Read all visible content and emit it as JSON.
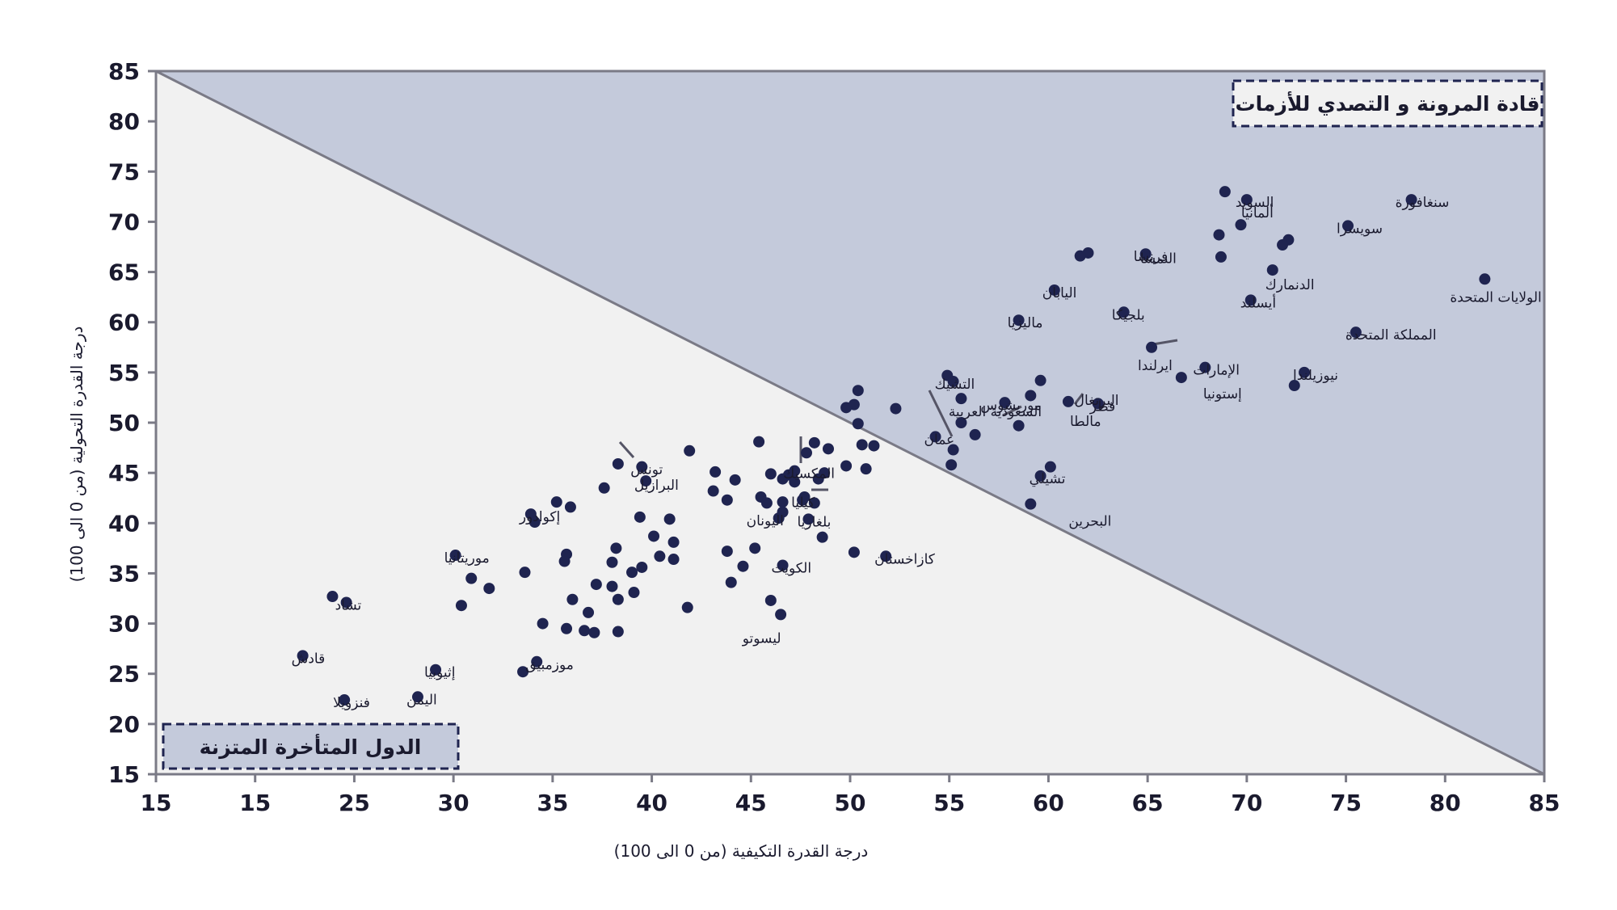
{
  "chart_data": {
    "type": "scatter",
    "xlabel": "درجة القدرة التكيفية (من 0 الى 100)",
    "ylabel": "درجة القدرة التحولية (من 0 الى 100)",
    "xlim": [
      15,
      85
    ],
    "ylim": [
      15,
      85
    ],
    "x_tick_labels": [
      "15",
      "15",
      "25",
      "30",
      "35",
      "40",
      "45",
      "50",
      "55",
      "60",
      "65",
      "70",
      "75",
      "80",
      "85"
    ],
    "y_ticks": [
      15,
      20,
      25,
      30,
      35,
      40,
      45,
      50,
      55,
      60,
      65,
      70,
      75,
      80,
      85
    ],
    "grid": false,
    "diagonal": {
      "from": [
        15,
        85
      ],
      "to": [
        85,
        15
      ]
    },
    "zones": {
      "upper": {
        "label": "قادة المرونة و التصدي للأزمات",
        "color": "#c4cadb"
      },
      "lower": {
        "label": "الدول المتأخرة المتزنة",
        "color": "#f1f1f1"
      }
    },
    "colors": {
      "point": "#1f2450",
      "axis": "#7a7a86",
      "border": "#1f2450"
    },
    "points": [
      {
        "x": 78.3,
        "y": 72.2,
        "label": "سنغافورة"
      },
      {
        "x": 82.0,
        "y": 64.3,
        "label": "الولايات المتحدة"
      },
      {
        "x": 68.9,
        "y": 73.0,
        "label": "ألمانيا"
      },
      {
        "x": 70.0,
        "y": 72.2,
        "label": "السويد"
      },
      {
        "x": 75.1,
        "y": 69.6,
        "label": "سويسرا"
      },
      {
        "x": 69.7,
        "y": 69.7,
        "label": ""
      },
      {
        "x": 68.6,
        "y": 68.7,
        "label": ""
      },
      {
        "x": 72.1,
        "y": 68.2,
        "label": ""
      },
      {
        "x": 71.8,
        "y": 67.7,
        "label": ""
      },
      {
        "x": 68.7,
        "y": 66.5,
        "label": ""
      },
      {
        "x": 71.3,
        "y": 65.2,
        "label": "الدنمارك"
      },
      {
        "x": 70.2,
        "y": 62.2,
        "label": "أيسلند"
      },
      {
        "x": 75.5,
        "y": 59.0,
        "label": "المملكة المتحدة"
      },
      {
        "x": 72.9,
        "y": 55.0,
        "label": "نيوزيلندا"
      },
      {
        "x": 72.4,
        "y": 53.7,
        "label": ""
      },
      {
        "x": 67.9,
        "y": 55.5,
        "label": "الإمارات"
      },
      {
        "x": 66.7,
        "y": 54.5,
        "label": "إستونيا"
      },
      {
        "x": 65.2,
        "y": 57.5,
        "label": "ايرلندا"
      },
      {
        "x": 64.9,
        "y": 66.8,
        "label": "فرنسا"
      },
      {
        "x": 63.8,
        "y": 61.0,
        "label": "بلجيكا"
      },
      {
        "x": 62.0,
        "y": 66.9,
        "label": ""
      },
      {
        "x": 61.6,
        "y": 66.6,
        "label": "النمسا"
      },
      {
        "x": 60.3,
        "y": 63.2,
        "label": "اليابان"
      },
      {
        "x": 58.5,
        "y": 60.2,
        "label": "ماليزيا"
      },
      {
        "x": 59.6,
        "y": 54.2,
        "label": "البرتغال"
      },
      {
        "x": 59.1,
        "y": 52.7,
        "label": ""
      },
      {
        "x": 61.0,
        "y": 52.1,
        "label": "مالطا"
      },
      {
        "x": 62.5,
        "y": 51.9,
        "label": "قطر"
      },
      {
        "x": 57.8,
        "y": 52.0,
        "label": "موريشوس"
      },
      {
        "x": 58.5,
        "y": 49.7,
        "label": ""
      },
      {
        "x": 54.9,
        "y": 54.7,
        "label": ""
      },
      {
        "x": 55.2,
        "y": 54.1,
        "label": "التشيك"
      },
      {
        "x": 55.6,
        "y": 52.4,
        "label": ""
      },
      {
        "x": 55.6,
        "y": 50.0,
        "label": ""
      },
      {
        "x": 56.3,
        "y": 48.8,
        "label": ""
      },
      {
        "x": 54.3,
        "y": 48.6,
        "label": "عمان"
      },
      {
        "x": 55.2,
        "y": 47.3,
        "label": ""
      },
      {
        "x": 55.1,
        "y": 45.8,
        "label": ""
      },
      {
        "x": 60.1,
        "y": 45.6,
        "label": ""
      },
      {
        "x": 59.6,
        "y": 44.7,
        "label": "تشيلي"
      },
      {
        "x": 59.1,
        "y": 41.9,
        "label": "البحرين"
      },
      {
        "x": 50.4,
        "y": 53.2,
        "label": "السعودية العربية"
      },
      {
        "x": 50.2,
        "y": 51.8,
        "label": ""
      },
      {
        "x": 49.8,
        "y": 51.5,
        "label": ""
      },
      {
        "x": 52.3,
        "y": 51.4,
        "label": ""
      },
      {
        "x": 50.4,
        "y": 49.9,
        "label": ""
      },
      {
        "x": 50.6,
        "y": 47.8,
        "label": ""
      },
      {
        "x": 51.2,
        "y": 47.7,
        "label": ""
      },
      {
        "x": 49.8,
        "y": 45.7,
        "label": ""
      },
      {
        "x": 50.8,
        "y": 45.4,
        "label": ""
      },
      {
        "x": 48.9,
        "y": 47.4,
        "label": ""
      },
      {
        "x": 48.2,
        "y": 48.0,
        "label": ""
      },
      {
        "x": 47.8,
        "y": 47.0,
        "label": ""
      },
      {
        "x": 47.2,
        "y": 45.2,
        "label": "المكسيك"
      },
      {
        "x": 46.9,
        "y": 44.8,
        "label": ""
      },
      {
        "x": 46.6,
        "y": 44.4,
        "label": ""
      },
      {
        "x": 47.2,
        "y": 44.1,
        "label": ""
      },
      {
        "x": 46.0,
        "y": 44.9,
        "label": ""
      },
      {
        "x": 48.7,
        "y": 45.0,
        "label": ""
      },
      {
        "x": 48.4,
        "y": 44.4,
        "label": ""
      },
      {
        "x": 47.7,
        "y": 42.6,
        "label": ""
      },
      {
        "x": 47.6,
        "y": 42.3,
        "label": "كيليا"
      },
      {
        "x": 48.2,
        "y": 42.0,
        "label": ""
      },
      {
        "x": 45.4,
        "y": 48.1,
        "label": ""
      },
      {
        "x": 45.5,
        "y": 42.6,
        "label": ""
      },
      {
        "x": 45.8,
        "y": 42.0,
        "label": ""
      },
      {
        "x": 46.6,
        "y": 42.1,
        "label": ""
      },
      {
        "x": 46.6,
        "y": 41.1,
        "label": ""
      },
      {
        "x": 46.4,
        "y": 40.5,
        "label": "اليونان"
      },
      {
        "x": 47.9,
        "y": 40.4,
        "label": "بلغاريا"
      },
      {
        "x": 48.6,
        "y": 38.6,
        "label": ""
      },
      {
        "x": 44.2,
        "y": 44.3,
        "label": ""
      },
      {
        "x": 43.2,
        "y": 45.1,
        "label": ""
      },
      {
        "x": 43.1,
        "y": 43.2,
        "label": ""
      },
      {
        "x": 43.8,
        "y": 42.3,
        "label": ""
      },
      {
        "x": 41.9,
        "y": 47.2,
        "label": ""
      },
      {
        "x": 45.2,
        "y": 37.5,
        "label": ""
      },
      {
        "x": 43.8,
        "y": 37.2,
        "label": ""
      },
      {
        "x": 44.6,
        "y": 35.7,
        "label": ""
      },
      {
        "x": 44.0,
        "y": 34.1,
        "label": ""
      },
      {
        "x": 46.6,
        "y": 35.8,
        "label": "الكويت"
      },
      {
        "x": 50.2,
        "y": 37.1,
        "label": ""
      },
      {
        "x": 51.8,
        "y": 36.7,
        "label": "كازاخستان"
      },
      {
        "x": 46.0,
        "y": 32.3,
        "label": ""
      },
      {
        "x": 46.5,
        "y": 30.9,
        "label": ""
      },
      {
        "x": 41.8,
        "y": 31.6,
        "label": "ليسوتو"
      },
      {
        "x": 38.3,
        "y": 45.9,
        "label": "البرازيل"
      },
      {
        "x": 39.5,
        "y": 45.6,
        "label": "تونس"
      },
      {
        "x": 39.7,
        "y": 44.2,
        "label": ""
      },
      {
        "x": 37.6,
        "y": 43.5,
        "label": ""
      },
      {
        "x": 35.2,
        "y": 42.1,
        "label": ""
      },
      {
        "x": 35.9,
        "y": 41.6,
        "label": ""
      },
      {
        "x": 39.4,
        "y": 40.6,
        "label": ""
      },
      {
        "x": 40.9,
        "y": 40.4,
        "label": ""
      },
      {
        "x": 40.1,
        "y": 38.7,
        "label": ""
      },
      {
        "x": 41.1,
        "y": 38.1,
        "label": ""
      },
      {
        "x": 38.2,
        "y": 37.5,
        "label": ""
      },
      {
        "x": 40.4,
        "y": 36.7,
        "label": ""
      },
      {
        "x": 41.1,
        "y": 36.4,
        "label": ""
      },
      {
        "x": 39.5,
        "y": 35.6,
        "label": ""
      },
      {
        "x": 39.0,
        "y": 35.1,
        "label": ""
      },
      {
        "x": 38.0,
        "y": 36.1,
        "label": ""
      },
      {
        "x": 35.7,
        "y": 36.9,
        "label": ""
      },
      {
        "x": 35.6,
        "y": 36.2,
        "label": ""
      },
      {
        "x": 33.9,
        "y": 40.9,
        "label": "إكوادور"
      },
      {
        "x": 34.1,
        "y": 40.1,
        "label": ""
      },
      {
        "x": 33.6,
        "y": 35.1,
        "label": ""
      },
      {
        "x": 31.8,
        "y": 33.5,
        "label": ""
      },
      {
        "x": 30.9,
        "y": 34.5,
        "label": ""
      },
      {
        "x": 30.1,
        "y": 36.8,
        "label": "موريتانيا"
      },
      {
        "x": 30.4,
        "y": 31.8,
        "label": ""
      },
      {
        "x": 37.2,
        "y": 33.9,
        "label": ""
      },
      {
        "x": 38.0,
        "y": 33.7,
        "label": ""
      },
      {
        "x": 39.1,
        "y": 33.1,
        "label": ""
      },
      {
        "x": 38.3,
        "y": 32.4,
        "label": ""
      },
      {
        "x": 36.0,
        "y": 32.4,
        "label": ""
      },
      {
        "x": 36.8,
        "y": 31.1,
        "label": ""
      },
      {
        "x": 34.5,
        "y": 30.0,
        "label": ""
      },
      {
        "x": 35.7,
        "y": 29.5,
        "label": ""
      },
      {
        "x": 36.6,
        "y": 29.3,
        "label": ""
      },
      {
        "x": 37.1,
        "y": 29.1,
        "label": ""
      },
      {
        "x": 38.3,
        "y": 29.2,
        "label": ""
      },
      {
        "x": 34.2,
        "y": 26.2,
        "label": "موزمبيق"
      },
      {
        "x": 33.5,
        "y": 25.2,
        "label": ""
      },
      {
        "x": 23.9,
        "y": 32.7,
        "label": ""
      },
      {
        "x": 24.6,
        "y": 32.1,
        "label": "تشاد"
      },
      {
        "x": 22.4,
        "y": 26.8,
        "label": "قادش"
      },
      {
        "x": 29.1,
        "y": 25.4,
        "label": "إثيوبيا"
      },
      {
        "x": 28.2,
        "y": 22.7,
        "label": "اليمن"
      },
      {
        "x": 24.5,
        "y": 22.4,
        "label": "فنزويلا"
      }
    ]
  }
}
